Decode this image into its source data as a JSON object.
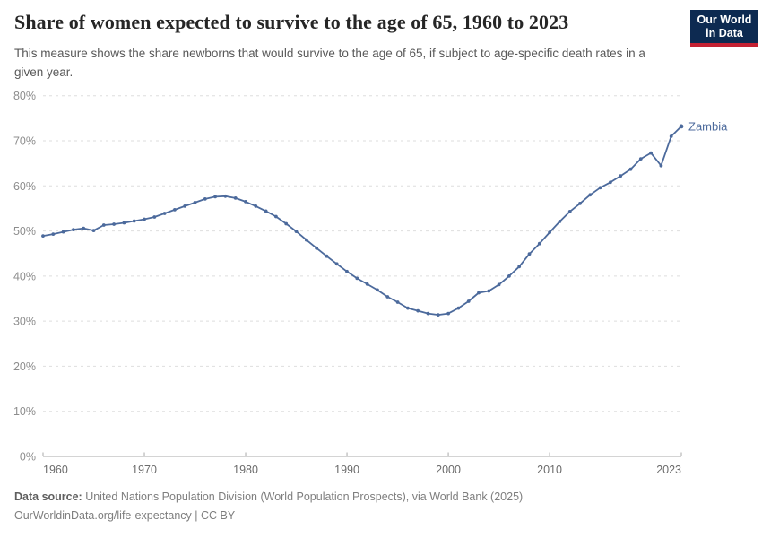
{
  "header": {
    "title": "Share of women expected to survive to the age of 65, 1960 to 2023",
    "subtitle": "This measure shows the share newborns that would survive to the age of 65, if subject to age-specific death rates in a given year.",
    "logo": {
      "line1": "Our World",
      "line2": "in Data"
    }
  },
  "footer": {
    "source_label": "Data source:",
    "source_text": " United Nations Population Division (World Population Prospects), via World Bank (2025)",
    "link_text": "OurWorldinData.org/life-expectancy | CC BY"
  },
  "colors": {
    "series_blue": "#4c6a9c",
    "gridline": "#dedede",
    "axis_line": "#a9a9a9",
    "y_tick_label": "#8d8d8d",
    "x_tick_label": "#6b6b6b",
    "logo_navy": "#0d2a51",
    "logo_red": "#c42133"
  },
  "chart_data": {
    "type": "line",
    "title": "Share of women expected to survive to the age of 65, 1960 to 2023",
    "xlabel": "",
    "ylabel": "",
    "x_range": [
      1960,
      2023
    ],
    "ylim": [
      0,
      80
    ],
    "y_ticks": [
      0,
      10,
      20,
      30,
      40,
      50,
      60,
      70,
      80
    ],
    "y_tick_suffix": "%",
    "x_ticks": [
      1960,
      1970,
      1980,
      1990,
      2000,
      2010,
      2023
    ],
    "grid": "horizontal dashed",
    "legend": "label at end of line",
    "series": [
      {
        "name": "Zambia",
        "color": "#4c6a9c",
        "years": [
          1960,
          1961,
          1962,
          1963,
          1964,
          1965,
          1966,
          1967,
          1968,
          1969,
          1970,
          1971,
          1972,
          1973,
          1974,
          1975,
          1976,
          1977,
          1978,
          1979,
          1980,
          1981,
          1982,
          1983,
          1984,
          1985,
          1986,
          1987,
          1988,
          1989,
          1990,
          1991,
          1992,
          1993,
          1994,
          1995,
          1996,
          1997,
          1998,
          1999,
          2000,
          2001,
          2002,
          2003,
          2004,
          2005,
          2006,
          2007,
          2008,
          2009,
          2010,
          2011,
          2012,
          2013,
          2014,
          2015,
          2016,
          2017,
          2018,
          2019,
          2020,
          2021,
          2022,
          2023
        ],
        "values": [
          48.9,
          49.3,
          49.8,
          50.3,
          50.6,
          50.1,
          51.3,
          51.5,
          51.8,
          52.2,
          52.6,
          53.1,
          53.9,
          54.7,
          55.5,
          56.3,
          57.1,
          57.6,
          57.7,
          57.3,
          56.5,
          55.5,
          54.4,
          53.2,
          51.6,
          49.9,
          48.0,
          46.2,
          44.4,
          42.7,
          41.0,
          39.5,
          38.2,
          36.9,
          35.4,
          34.2,
          32.9,
          32.3,
          31.7,
          31.4,
          31.7,
          32.9,
          34.4,
          36.3,
          36.7,
          38.1,
          40.0,
          42.1,
          44.9,
          47.2,
          49.7,
          52.1,
          54.3,
          56.1,
          58.0,
          59.6,
          60.8,
          62.2,
          63.7,
          66.0,
          67.3,
          64.5,
          71.0,
          73.2
        ]
      }
    ]
  }
}
